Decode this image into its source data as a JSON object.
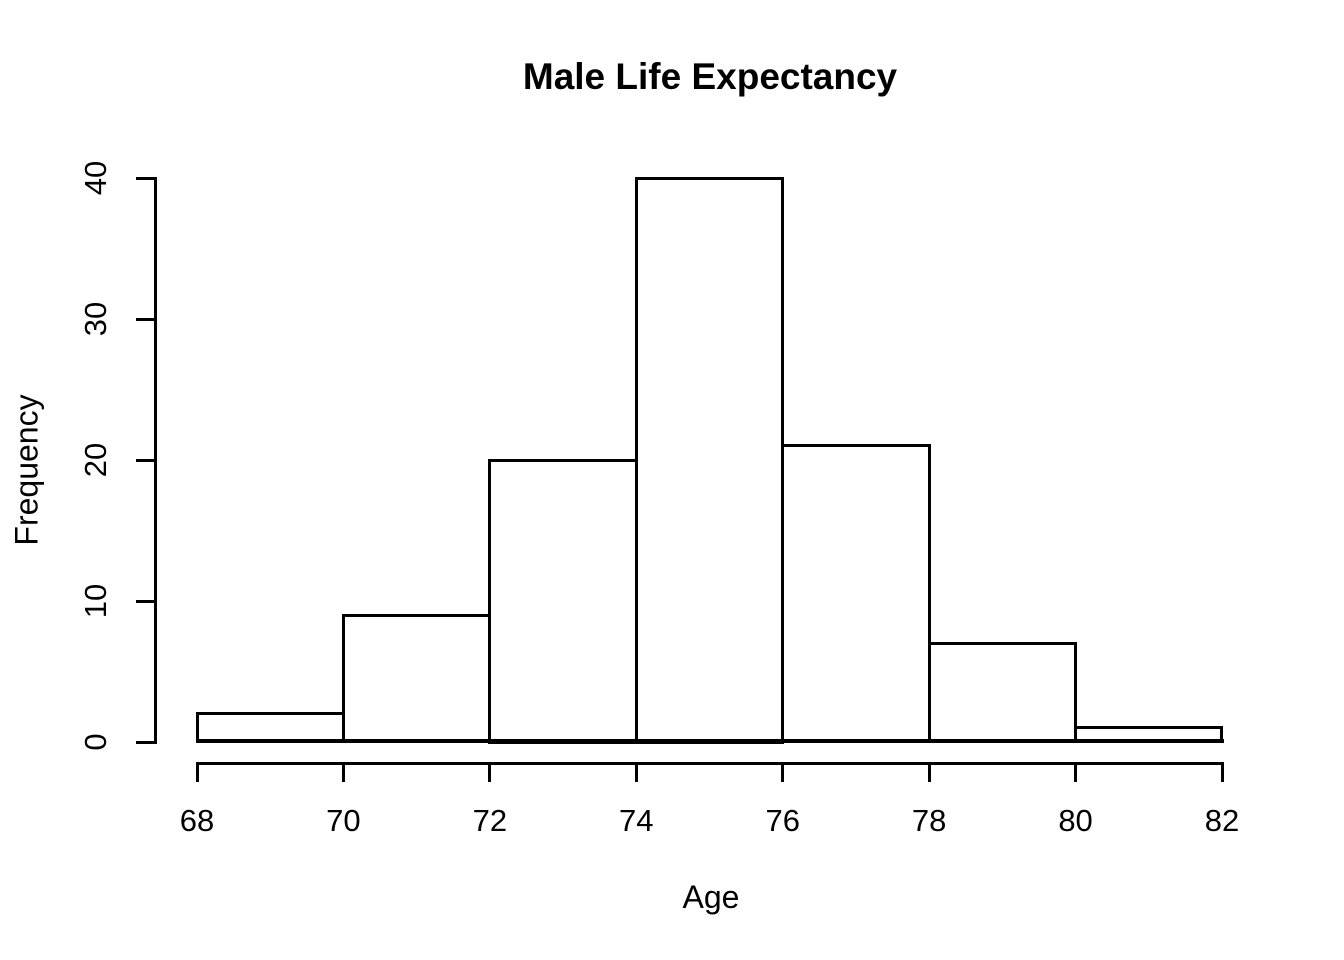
{
  "chart_data": {
    "type": "histogram",
    "title": "Male Life Expectancy",
    "xlabel": "Age",
    "ylabel": "Frequency",
    "bin_edges": [
      68,
      70,
      72,
      74,
      76,
      78,
      80,
      82
    ],
    "counts": [
      2,
      9,
      20,
      40,
      21,
      7,
      1
    ],
    "x_ticks": [
      "68",
      "70",
      "72",
      "74",
      "76",
      "78",
      "80",
      "82"
    ],
    "x_tick_values": [
      68,
      70,
      72,
      74,
      76,
      78,
      80,
      82
    ],
    "y_ticks": [
      "0",
      "10",
      "20",
      "30",
      "40"
    ],
    "y_tick_values": [
      0,
      10,
      20,
      30,
      40
    ],
    "xlim": [
      68,
      82
    ],
    "ylim": [
      0,
      40
    ],
    "grid": false,
    "legend": null,
    "colors": {
      "background": "#ffffff",
      "bar_fill": "#ffffff",
      "bar_border": "#000000",
      "axis": "#000000",
      "text": "#000000"
    }
  }
}
